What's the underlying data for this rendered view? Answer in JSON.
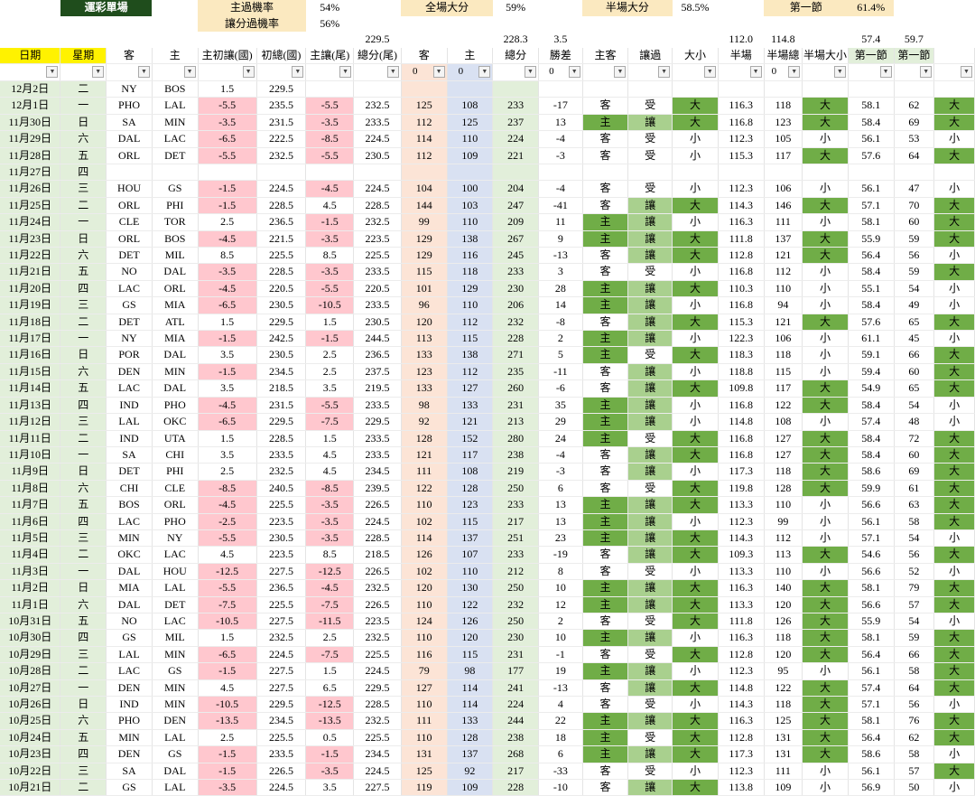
{
  "top": {
    "title": "運彩單場",
    "home_cover_label": "主過機率",
    "home_cover_value": "54%",
    "spread_cover_label": "讓分過機率",
    "spread_cover_value": "56%",
    "full_total_label": "全場大分",
    "full_total_value": "59%",
    "half_total_label": "半場大分",
    "half_total_value": "58.5%",
    "first_q_label": "第一節",
    "first_q_value": "61.4%"
  },
  "averages": {
    "total_close": "229.5",
    "total_score": "228.3",
    "margin": "3.5",
    "half": "112.0",
    "half_total": "114.8",
    "q1_line": "57.4",
    "q1_score": "59.7"
  },
  "headers": [
    "日期",
    "星期",
    "客",
    "主",
    "主初讓(國)",
    "初總(國)",
    "主讓(尾)",
    "總分(尾)",
    "客",
    "主",
    "總分",
    "勝差",
    "主客",
    "讓過",
    "大小",
    "半場",
    "半場總",
    "半場大小",
    "第一節",
    "第一節",
    ""
  ],
  "filters": [
    "",
    "",
    "",
    "",
    "",
    "",
    "",
    "",
    "0",
    "0",
    "",
    "0",
    "",
    "",
    "",
    "",
    "0",
    "",
    "",
    "",
    ""
  ],
  "rows": [
    [
      "12月2日",
      "二",
      "NY",
      "BOS",
      "1.5",
      "229.5",
      "",
      "",
      "",
      "",
      "",
      "",
      "",
      "",
      "",
      "",
      "",
      "",
      "",
      "",
      ""
    ],
    [
      "12月1日",
      "一",
      "PHO",
      "LAL",
      "-5.5",
      "235.5",
      "-5.5",
      "232.5",
      "125",
      "108",
      "233",
      "-17",
      "客",
      "受",
      "大",
      "116.3",
      "118",
      "大",
      "58.1",
      "62",
      "大"
    ],
    [
      "11月30日",
      "日",
      "SA",
      "MIN",
      "-3.5",
      "231.5",
      "-3.5",
      "233.5",
      "112",
      "125",
      "237",
      "13",
      "主",
      "讓",
      "大",
      "116.8",
      "123",
      "大",
      "58.4",
      "69",
      "大"
    ],
    [
      "11月29日",
      "六",
      "DAL",
      "LAC",
      "-6.5",
      "222.5",
      "-8.5",
      "224.5",
      "114",
      "110",
      "224",
      "-4",
      "客",
      "受",
      "小",
      "112.3",
      "105",
      "小",
      "56.1",
      "53",
      "小"
    ],
    [
      "11月28日",
      "五",
      "ORL",
      "DET",
      "-5.5",
      "232.5",
      "-5.5",
      "230.5",
      "112",
      "109",
      "221",
      "-3",
      "客",
      "受",
      "小",
      "115.3",
      "117",
      "大",
      "57.6",
      "64",
      "大"
    ],
    [
      "11月27日",
      "四",
      "",
      "",
      "",
      "",
      "",
      "",
      "",
      "",
      "",
      "",
      "",
      "",
      "",
      "",
      "",
      "",
      "",
      "",
      ""
    ],
    [
      "11月26日",
      "三",
      "HOU",
      "GS",
      "-1.5",
      "224.5",
      "-4.5",
      "224.5",
      "104",
      "100",
      "204",
      "-4",
      "客",
      "受",
      "小",
      "112.3",
      "106",
      "小",
      "56.1",
      "47",
      "小"
    ],
    [
      "11月25日",
      "二",
      "ORL",
      "PHI",
      "-1.5",
      "228.5",
      "4.5",
      "228.5",
      "144",
      "103",
      "247",
      "-41",
      "客",
      "讓",
      "大",
      "114.3",
      "146",
      "大",
      "57.1",
      "70",
      "大"
    ],
    [
      "11月24日",
      "一",
      "CLE",
      "TOR",
      "2.5",
      "236.5",
      "-1.5",
      "232.5",
      "99",
      "110",
      "209",
      "11",
      "主",
      "讓",
      "小",
      "116.3",
      "111",
      "小",
      "58.1",
      "60",
      "大"
    ],
    [
      "11月23日",
      "日",
      "ORL",
      "BOS",
      "-4.5",
      "221.5",
      "-3.5",
      "223.5",
      "129",
      "138",
      "267",
      "9",
      "主",
      "讓",
      "大",
      "111.8",
      "137",
      "大",
      "55.9",
      "59",
      "大"
    ],
    [
      "11月22日",
      "六",
      "DET",
      "MIL",
      "8.5",
      "225.5",
      "8.5",
      "225.5",
      "129",
      "116",
      "245",
      "-13",
      "客",
      "讓",
      "大",
      "112.8",
      "121",
      "大",
      "56.4",
      "56",
      "小"
    ],
    [
      "11月21日",
      "五",
      "NO",
      "DAL",
      "-3.5",
      "228.5",
      "-3.5",
      "233.5",
      "115",
      "118",
      "233",
      "3",
      "客",
      "受",
      "小",
      "116.8",
      "112",
      "小",
      "58.4",
      "59",
      "大"
    ],
    [
      "11月20日",
      "四",
      "LAC",
      "ORL",
      "-4.5",
      "220.5",
      "-5.5",
      "220.5",
      "101",
      "129",
      "230",
      "28",
      "主",
      "讓",
      "大",
      "110.3",
      "110",
      "小",
      "55.1",
      "54",
      "小"
    ],
    [
      "11月19日",
      "三",
      "GS",
      "MIA",
      "-6.5",
      "230.5",
      "-10.5",
      "233.5",
      "96",
      "110",
      "206",
      "14",
      "主",
      "讓",
      "小",
      "116.8",
      "94",
      "小",
      "58.4",
      "49",
      "小"
    ],
    [
      "11月18日",
      "二",
      "DET",
      "ATL",
      "1.5",
      "229.5",
      "1.5",
      "230.5",
      "120",
      "112",
      "232",
      "-8",
      "客",
      "讓",
      "大",
      "115.3",
      "121",
      "大",
      "57.6",
      "65",
      "大"
    ],
    [
      "11月17日",
      "一",
      "NY",
      "MIA",
      "-1.5",
      "242.5",
      "-1.5",
      "244.5",
      "113",
      "115",
      "228",
      "2",
      "主",
      "讓",
      "小",
      "122.3",
      "106",
      "小",
      "61.1",
      "45",
      "小"
    ],
    [
      "11月16日",
      "日",
      "POR",
      "DAL",
      "3.5",
      "230.5",
      "2.5",
      "236.5",
      "133",
      "138",
      "271",
      "5",
      "主",
      "受",
      "大",
      "118.3",
      "118",
      "小",
      "59.1",
      "66",
      "大"
    ],
    [
      "11月15日",
      "六",
      "DEN",
      "MIN",
      "-1.5",
      "234.5",
      "2.5",
      "237.5",
      "123",
      "112",
      "235",
      "-11",
      "客",
      "讓",
      "小",
      "118.8",
      "115",
      "小",
      "59.4",
      "60",
      "大"
    ],
    [
      "11月14日",
      "五",
      "LAC",
      "DAL",
      "3.5",
      "218.5",
      "3.5",
      "219.5",
      "133",
      "127",
      "260",
      "-6",
      "客",
      "讓",
      "大",
      "109.8",
      "117",
      "大",
      "54.9",
      "65",
      "大"
    ],
    [
      "11月13日",
      "四",
      "IND",
      "PHO",
      "-4.5",
      "231.5",
      "-5.5",
      "233.5",
      "98",
      "133",
      "231",
      "35",
      "主",
      "讓",
      "小",
      "116.8",
      "122",
      "大",
      "58.4",
      "54",
      "小"
    ],
    [
      "11月12日",
      "三",
      "LAL",
      "OKC",
      "-6.5",
      "229.5",
      "-7.5",
      "229.5",
      "92",
      "121",
      "213",
      "29",
      "主",
      "讓",
      "小",
      "114.8",
      "108",
      "小",
      "57.4",
      "48",
      "小"
    ],
    [
      "11月11日",
      "二",
      "IND",
      "UTA",
      "1.5",
      "228.5",
      "1.5",
      "233.5",
      "128",
      "152",
      "280",
      "24",
      "主",
      "受",
      "大",
      "116.8",
      "127",
      "大",
      "58.4",
      "72",
      "大"
    ],
    [
      "11月10日",
      "一",
      "SA",
      "CHI",
      "3.5",
      "233.5",
      "4.5",
      "233.5",
      "121",
      "117",
      "238",
      "-4",
      "客",
      "讓",
      "大",
      "116.8",
      "127",
      "大",
      "58.4",
      "60",
      "大"
    ],
    [
      "11月9日",
      "日",
      "DET",
      "PHI",
      "2.5",
      "232.5",
      "4.5",
      "234.5",
      "111",
      "108",
      "219",
      "-3",
      "客",
      "讓",
      "小",
      "117.3",
      "118",
      "大",
      "58.6",
      "69",
      "大"
    ],
    [
      "11月8日",
      "六",
      "CHI",
      "CLE",
      "-8.5",
      "240.5",
      "-8.5",
      "239.5",
      "122",
      "128",
      "250",
      "6",
      "客",
      "受",
      "大",
      "119.8",
      "128",
      "大",
      "59.9",
      "61",
      "大"
    ],
    [
      "11月7日",
      "五",
      "BOS",
      "ORL",
      "-4.5",
      "225.5",
      "-3.5",
      "226.5",
      "110",
      "123",
      "233",
      "13",
      "主",
      "讓",
      "大",
      "113.3",
      "110",
      "小",
      "56.6",
      "63",
      "大"
    ],
    [
      "11月6日",
      "四",
      "LAC",
      "PHO",
      "-2.5",
      "223.5",
      "-3.5",
      "224.5",
      "102",
      "115",
      "217",
      "13",
      "主",
      "讓",
      "小",
      "112.3",
      "99",
      "小",
      "56.1",
      "58",
      "大"
    ],
    [
      "11月5日",
      "三",
      "MIN",
      "NY",
      "-5.5",
      "230.5",
      "-3.5",
      "228.5",
      "114",
      "137",
      "251",
      "23",
      "主",
      "讓",
      "大",
      "114.3",
      "112",
      "小",
      "57.1",
      "54",
      "小"
    ],
    [
      "11月4日",
      "二",
      "OKC",
      "LAC",
      "4.5",
      "223.5",
      "8.5",
      "218.5",
      "126",
      "107",
      "233",
      "-19",
      "客",
      "讓",
      "大",
      "109.3",
      "113",
      "大",
      "54.6",
      "56",
      "大"
    ],
    [
      "11月3日",
      "一",
      "DAL",
      "HOU",
      "-12.5",
      "227.5",
      "-12.5",
      "226.5",
      "102",
      "110",
      "212",
      "8",
      "客",
      "受",
      "小",
      "113.3",
      "110",
      "小",
      "56.6",
      "52",
      "小"
    ],
    [
      "11月2日",
      "日",
      "MIA",
      "LAL",
      "-5.5",
      "236.5",
      "-4.5",
      "232.5",
      "120",
      "130",
      "250",
      "10",
      "主",
      "讓",
      "大",
      "116.3",
      "140",
      "大",
      "58.1",
      "79",
      "大"
    ],
    [
      "11月1日",
      "六",
      "DAL",
      "DET",
      "-7.5",
      "225.5",
      "-7.5",
      "226.5",
      "110",
      "122",
      "232",
      "12",
      "主",
      "讓",
      "大",
      "113.3",
      "120",
      "大",
      "56.6",
      "57",
      "大"
    ],
    [
      "10月31日",
      "五",
      "NO",
      "LAC",
      "-10.5",
      "227.5",
      "-11.5",
      "223.5",
      "124",
      "126",
      "250",
      "2",
      "客",
      "受",
      "大",
      "111.8",
      "126",
      "大",
      "55.9",
      "54",
      "小"
    ],
    [
      "10月30日",
      "四",
      "GS",
      "MIL",
      "1.5",
      "232.5",
      "2.5",
      "232.5",
      "110",
      "120",
      "230",
      "10",
      "主",
      "讓",
      "小",
      "116.3",
      "118",
      "大",
      "58.1",
      "59",
      "大"
    ],
    [
      "10月29日",
      "三",
      "LAL",
      "MIN",
      "-6.5",
      "224.5",
      "-7.5",
      "225.5",
      "116",
      "115",
      "231",
      "-1",
      "客",
      "受",
      "大",
      "112.8",
      "120",
      "大",
      "56.4",
      "66",
      "大"
    ],
    [
      "10月28日",
      "二",
      "LAC",
      "GS",
      "-1.5",
      "227.5",
      "1.5",
      "224.5",
      "79",
      "98",
      "177",
      "19",
      "主",
      "讓",
      "小",
      "112.3",
      "95",
      "小",
      "56.1",
      "58",
      "大"
    ],
    [
      "10月27日",
      "一",
      "DEN",
      "MIN",
      "4.5",
      "227.5",
      "6.5",
      "229.5",
      "127",
      "114",
      "241",
      "-13",
      "客",
      "讓",
      "大",
      "114.8",
      "122",
      "大",
      "57.4",
      "64",
      "大"
    ],
    [
      "10月26日",
      "日",
      "IND",
      "MIN",
      "-10.5",
      "229.5",
      "-12.5",
      "228.5",
      "110",
      "114",
      "224",
      "4",
      "客",
      "受",
      "小",
      "114.3",
      "118",
      "大",
      "57.1",
      "56",
      "小"
    ],
    [
      "10月25日",
      "六",
      "PHO",
      "DEN",
      "-13.5",
      "234.5",
      "-13.5",
      "232.5",
      "111",
      "133",
      "244",
      "22",
      "主",
      "讓",
      "大",
      "116.3",
      "125",
      "大",
      "58.1",
      "76",
      "大"
    ],
    [
      "10月24日",
      "五",
      "MIN",
      "LAL",
      "2.5",
      "225.5",
      "0.5",
      "225.5",
      "110",
      "128",
      "238",
      "18",
      "主",
      "受",
      "大",
      "112.8",
      "131",
      "大",
      "56.4",
      "62",
      "大"
    ],
    [
      "10月23日",
      "四",
      "DEN",
      "GS",
      "-1.5",
      "233.5",
      "-1.5",
      "234.5",
      "131",
      "137",
      "268",
      "6",
      "主",
      "讓",
      "大",
      "117.3",
      "131",
      "大",
      "58.6",
      "58",
      "小"
    ],
    [
      "10月22日",
      "三",
      "SA",
      "DAL",
      "-1.5",
      "226.5",
      "-3.5",
      "224.5",
      "125",
      "92",
      "217",
      "-33",
      "客",
      "受",
      "小",
      "112.3",
      "111",
      "小",
      "56.1",
      "57",
      "大"
    ],
    [
      "10月21日",
      "二",
      "GS",
      "LAL",
      "-3.5",
      "224.5",
      "3.5",
      "227.5",
      "119",
      "109",
      "228",
      "-10",
      "客",
      "讓",
      "大",
      "113.8",
      "109",
      "小",
      "56.9",
      "50",
      "小"
    ]
  ]
}
